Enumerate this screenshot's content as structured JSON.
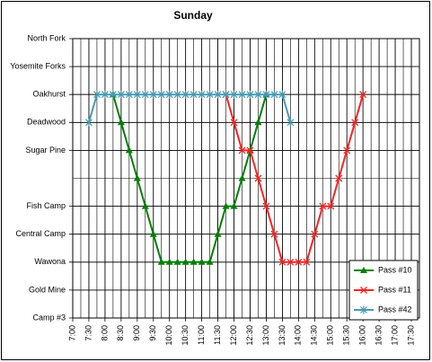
{
  "chart_data": {
    "type": "line",
    "title": "Sunday",
    "xlim": [
      7,
      17.75
    ],
    "ylim": [
      0,
      10
    ],
    "xticks": [
      {
        "value": 7,
        "label": "7:00"
      },
      {
        "value": 7.5,
        "label": "7:30"
      },
      {
        "value": 8,
        "label": "8:00"
      },
      {
        "value": 8.5,
        "label": "8:30"
      },
      {
        "value": 9,
        "label": "9:00"
      },
      {
        "value": 9.5,
        "label": "9:30"
      },
      {
        "value": 10,
        "label": "10:00"
      },
      {
        "value": 10.5,
        "label": "10:30"
      },
      {
        "value": 11,
        "label": "11:00"
      },
      {
        "value": 11.5,
        "label": "11:30"
      },
      {
        "value": 12,
        "label": "12:00"
      },
      {
        "value": 12.5,
        "label": "12:30"
      },
      {
        "value": 13,
        "label": "13:00"
      },
      {
        "value": 13.5,
        "label": "13:30"
      },
      {
        "value": 14,
        "label": "14:00"
      },
      {
        "value": 14.5,
        "label": "14:30"
      },
      {
        "value": 15,
        "label": "15:00"
      },
      {
        "value": 15.5,
        "label": "15:30"
      },
      {
        "value": 16,
        "label": "16:00"
      },
      {
        "value": 16.5,
        "label": "16:30"
      },
      {
        "value": 17,
        "label": "17:00"
      },
      {
        "value": 17.5,
        "label": "17:30"
      }
    ],
    "yticks": [
      {
        "value": 10,
        "label": "North Fork"
      },
      {
        "value": 9,
        "label": "Yosemite Forks"
      },
      {
        "value": 8,
        "label": "Oakhurst"
      },
      {
        "value": 7,
        "label": "Deadwood"
      },
      {
        "value": 6,
        "label": "Sugar Pine"
      },
      {
        "value": 4,
        "label": "Fish Camp"
      },
      {
        "value": 3,
        "label": "Central Camp"
      },
      {
        "value": 2,
        "label": "Wawona"
      },
      {
        "value": 1,
        "label": "Gold Mine"
      },
      {
        "value": 0,
        "label": "Camp #3"
      }
    ],
    "grid": true,
    "xgrid_step": 0.25,
    "ygrid_step": 1,
    "legend": "lower right",
    "series": [
      {
        "name": "Pass #10",
        "color": "#008000",
        "marker": "triangle",
        "x": [
          8.25,
          8.5,
          8.75,
          9,
          9.25,
          9.5,
          9.75,
          10,
          10.25,
          10.5,
          10.75,
          11,
          11.25,
          11.5,
          11.75,
          12,
          12.25,
          12.5,
          12.75,
          13
        ],
        "values": [
          8,
          7,
          6,
          5,
          4,
          3,
          2,
          2,
          2,
          2,
          2,
          2,
          2,
          3,
          4,
          4,
          5,
          6,
          7,
          8
        ]
      },
      {
        "name": "Pass #11",
        "color": "#ff2020",
        "marker": "x",
        "x": [
          11.75,
          12,
          12.25,
          12.5,
          12.75,
          13,
          13.25,
          13.5,
          13.75,
          14,
          14.25,
          14.5,
          14.75,
          15,
          15.25,
          15.5,
          15.75,
          16
        ],
        "values": [
          8,
          7,
          6,
          6,
          5,
          4,
          3,
          2,
          2,
          2,
          2,
          3,
          4,
          4,
          5,
          6,
          7,
          8
        ]
      },
      {
        "name": "Pass #42",
        "color": "#4a9ab0",
        "marker": "asterisk",
        "x": [
          7.5,
          7.75,
          8,
          8.25,
          8.5,
          8.75,
          9,
          9.25,
          9.5,
          9.75,
          10,
          10.25,
          10.5,
          10.75,
          11,
          11.25,
          11.5,
          11.75,
          12,
          12.25,
          12.5,
          12.75,
          13,
          13.25,
          13.5,
          13.75
        ],
        "values": [
          7,
          8,
          8,
          8,
          8,
          8,
          8,
          8,
          8,
          8,
          8,
          8,
          8,
          8,
          8,
          8,
          8,
          8,
          8,
          8,
          8,
          8,
          8,
          8,
          8,
          7
        ]
      }
    ]
  }
}
